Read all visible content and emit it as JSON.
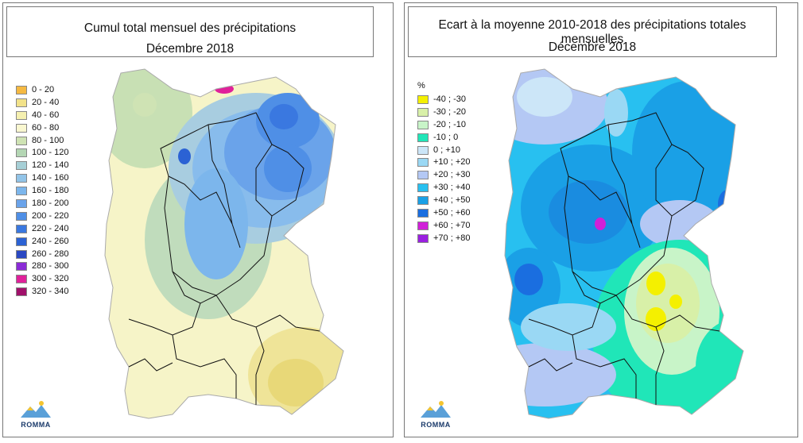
{
  "left": {
    "title_line1": "Cumul total mensuel des précipitations",
    "title_line2": "Décembre 2018",
    "legend": [
      {
        "label": "0 - 20",
        "color": "#f5b942"
      },
      {
        "label": "20 - 40",
        "color": "#f2e28a"
      },
      {
        "label": "40 - 60",
        "color": "#f5f0b0"
      },
      {
        "label": "60 - 80",
        "color": "#f9f7d0"
      },
      {
        "label": "80 - 100",
        "color": "#cfe3b4"
      },
      {
        "label": "100 - 120",
        "color": "#b4d6b4"
      },
      {
        "label": "120 - 140",
        "color": "#a6cfd6"
      },
      {
        "label": "140 - 160",
        "color": "#92c4e8"
      },
      {
        "label": "160 - 180",
        "color": "#7cb6ec"
      },
      {
        "label": "180 - 200",
        "color": "#6aa3ea"
      },
      {
        "label": "200 - 220",
        "color": "#4f8fe6"
      },
      {
        "label": "220 - 240",
        "color": "#3a78e0"
      },
      {
        "label": "240 - 260",
        "color": "#2b62d4"
      },
      {
        "label": "260 - 280",
        "color": "#2a48c2"
      },
      {
        "label": "280 - 300",
        "color": "#8a2bd6"
      },
      {
        "label": "300 - 320",
        "color": "#e0219a"
      },
      {
        "label": "320 - 340",
        "color": "#a0106a"
      }
    ],
    "logo_text": "ROMMA"
  },
  "right": {
    "title_line1": "Ecart à la moyenne 2010-2018 des précipitations totales mensuelles",
    "title_line2": "Décembre 2018",
    "unit": "%",
    "legend": [
      {
        "label": "-40 ; -30",
        "color": "#f4f000"
      },
      {
        "label": "-30 ; -20",
        "color": "#d8f0a8"
      },
      {
        "label": "-20 ; -10",
        "color": "#c8f4c8"
      },
      {
        "label": "-10 ; 0",
        "color": "#20e6b8"
      },
      {
        "label": "0 ; +10",
        "color": "#cce6f8"
      },
      {
        "label": "+10 ; +20",
        "color": "#9ad8f4"
      },
      {
        "label": "+20 ; +30",
        "color": "#b4c8f4"
      },
      {
        "label": "+30 ; +40",
        "color": "#28c0f0"
      },
      {
        "label": "+40 ; +50",
        "color": "#1aa0e6"
      },
      {
        "label": "+50 ; +60",
        "color": "#1a6ee0"
      },
      {
        "label": "+60 ; +70",
        "color": "#d020d8"
      },
      {
        "label": "+70 ; +80",
        "color": "#9a20e0"
      }
    ],
    "logo_text": "ROMMA"
  }
}
